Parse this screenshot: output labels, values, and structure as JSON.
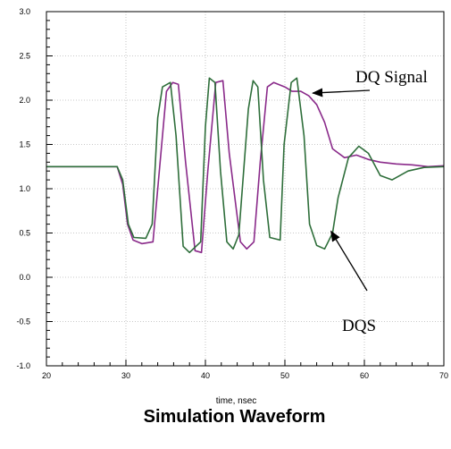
{
  "chart_data": {
    "type": "line",
    "title": "Simulation Waveform",
    "xlabel": "time, nsec",
    "ylabel": "",
    "xlim": [
      20,
      70
    ],
    "ylim": [
      -1.0,
      3.0
    ],
    "x_ticks": [
      "20",
      "30",
      "40",
      "50",
      "60",
      "70"
    ],
    "y_ticks": [
      "-1.0",
      "-0.5",
      "0.0",
      "0.5",
      "1.0",
      "1.5",
      "2.0",
      "2.5",
      "3.0"
    ],
    "grid": true,
    "series": [
      {
        "name": "DQ Signal",
        "color": "#8a2a8a",
        "x": [
          20,
          28.9,
          29.6,
          30.2,
          30.9,
          32.0,
          33.4,
          34.2,
          35.1,
          35.9,
          36.6,
          37.5,
          38.7,
          39.5,
          40.3,
          41.3,
          42.2,
          43.0,
          44.4,
          45.2,
          46.1,
          46.9,
          47.8,
          48.6,
          50.0,
          50.9,
          52.0,
          53.0,
          54.0,
          55.0,
          56.0,
          57.5,
          59.0,
          60.5,
          62.0,
          64.0,
          66.0,
          68.0,
          70.0
        ],
        "y": [
          1.25,
          1.25,
          1.05,
          0.6,
          0.42,
          0.38,
          0.4,
          1.2,
          2.1,
          2.2,
          2.18,
          1.3,
          0.3,
          0.28,
          1.2,
          2.2,
          2.22,
          1.4,
          0.4,
          0.32,
          0.4,
          1.3,
          2.15,
          2.2,
          2.15,
          2.1,
          2.1,
          2.05,
          1.95,
          1.75,
          1.45,
          1.35,
          1.38,
          1.33,
          1.3,
          1.28,
          1.27,
          1.25,
          1.26
        ]
      },
      {
        "name": "DQS",
        "color": "#2e6e3a",
        "x": [
          20,
          28.9,
          29.6,
          30.3,
          31.0,
          32.5,
          33.3,
          34.0,
          34.6,
          35.6,
          36.3,
          37.2,
          38.0,
          39.4,
          40.0,
          40.5,
          41.2,
          41.9,
          42.7,
          43.5,
          44.2,
          45.4,
          46.0,
          46.6,
          47.3,
          48.1,
          49.4,
          49.9,
          50.8,
          51.5,
          52.4,
          53.1,
          54.0,
          55.0,
          56.0,
          56.7,
          58.0,
          59.3,
          60.5,
          62.0,
          63.5,
          65.5,
          67.5,
          70.0
        ],
        "y": [
          1.25,
          1.25,
          1.1,
          0.6,
          0.45,
          0.44,
          0.6,
          1.8,
          2.15,
          2.2,
          1.6,
          0.35,
          0.28,
          0.4,
          1.7,
          2.25,
          2.2,
          1.2,
          0.4,
          0.32,
          0.48,
          1.9,
          2.22,
          2.15,
          1.1,
          0.45,
          0.42,
          1.5,
          2.2,
          2.25,
          1.6,
          0.6,
          0.36,
          0.32,
          0.5,
          0.9,
          1.35,
          1.48,
          1.4,
          1.15,
          1.1,
          1.2,
          1.24,
          1.25
        ]
      }
    ],
    "annotations": [
      {
        "text": "DQ Signal",
        "arrow_to": [
          53.5,
          2.08
        ]
      },
      {
        "text": "DQS",
        "arrow_to": [
          55.8,
          0.52
        ]
      }
    ]
  }
}
